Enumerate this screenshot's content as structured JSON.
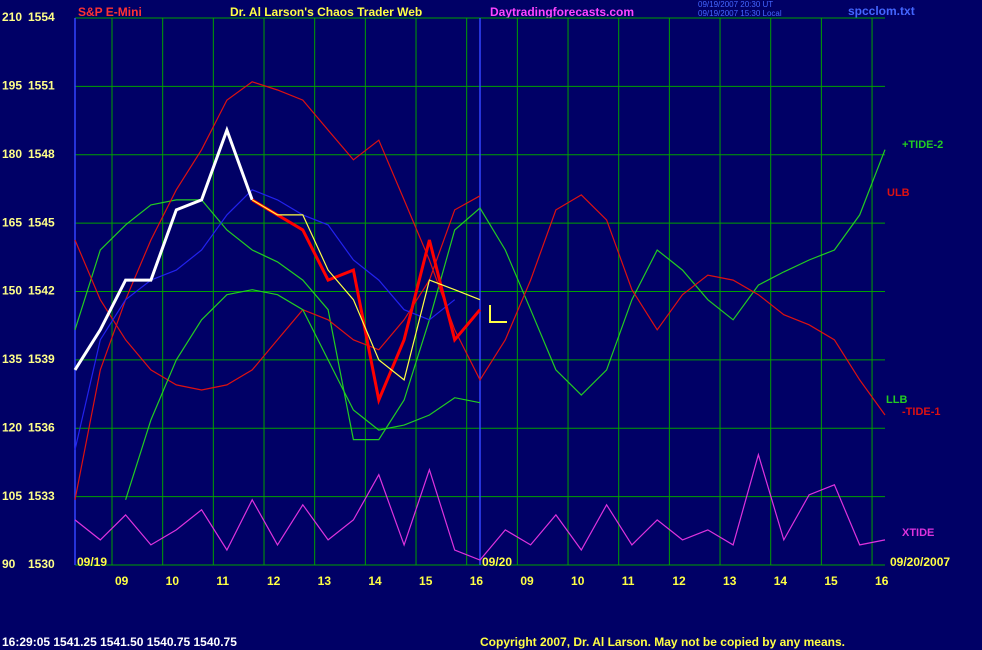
{
  "chart_data": {
    "type": "line",
    "symbol": "S&P E-Mini",
    "title": "Dr. Al Larson's Chaos Trader Web",
    "site": "Daytradingforecasts.com",
    "stamp": [
      "09/19/2007 20:30 UT",
      "09/19/2007 15:30 Local"
    ],
    "file": "spcclom.txt",
    "status": "16:29:05  1541.25 1541.50 1540.75 1540.75",
    "copyright": "Copyright 2007, Dr. Al Larson. May not be copied by any means.",
    "hour_labels": [
      "09",
      "10",
      "11",
      "12",
      "13",
      "14",
      "15",
      "16",
      "09",
      "10",
      "11",
      "12",
      "13",
      "14",
      "15",
      "16"
    ],
    "day_labels": [
      "09/19",
      "09/20",
      "09/20/2007"
    ],
    "ylim": [
      90,
      210
    ],
    "yticks": [
      90,
      105,
      120,
      135,
      150,
      165,
      180,
      195,
      210
    ],
    "y2lim": [
      1530,
      1554
    ],
    "y2ticks": [
      1530,
      1533,
      1536,
      1539,
      1542,
      1545,
      1548,
      1551,
      1554
    ],
    "grid": true,
    "series": [
      {
        "name": "+TIDE-2",
        "color": "#22cc22",
        "values": [
          141.6,
          159.1,
          164.6,
          169,
          170.1,
          170.1,
          163.5,
          159.1,
          156.5,
          152.5,
          146,
          117.5,
          117.5,
          126.2,
          143.8,
          163.5,
          168.3,
          159.1,
          146,
          132.8,
          127.3,
          132.8,
          148.2,
          159.1,
          154.7,
          148.2,
          143.8,
          151.4,
          154.3,
          156.9,
          159.1,
          166.8,
          181.1
        ]
      },
      {
        "name": "ULB",
        "color": "#dd1111",
        "values": [
          161.3,
          148.2,
          139.4,
          132.8,
          129.5,
          128.4,
          129.5,
          132.8,
          139.4,
          146,
          143.8,
          139.4,
          137.2,
          143.8,
          152.5,
          167.9,
          171,
          null,
          null,
          null,
          null,
          null,
          null,
          null,
          null,
          null,
          null,
          null,
          null,
          null,
          null,
          null,
          null
        ]
      },
      {
        "name": "LLB",
        "color": "#22cc22",
        "values": [
          null,
          null,
          104.3,
          121.8,
          135,
          143.8,
          149.3,
          150.4,
          149.3,
          146,
          135,
          124,
          119.6,
          120.7,
          122.9,
          126.7,
          125.6,
          null,
          null,
          null,
          null,
          null,
          null,
          null,
          null,
          null,
          null,
          null,
          null,
          null,
          null,
          null,
          null
        ]
      },
      {
        "name": "-TIDE-1",
        "color": "#dd1111",
        "values": [
          104.3,
          132.8,
          148.2,
          161.3,
          172.3,
          181.1,
          192,
          196,
          194.2,
          192,
          185.4,
          178.9,
          183.2,
          170.1,
          156.9,
          141.6,
          130.6,
          139.4,
          152.5,
          167.9,
          171.2,
          165.7,
          150.4,
          141.6,
          149.3,
          153.6,
          152.5,
          149.3,
          144.9,
          142.7,
          139.4,
          130.6,
          122.9
        ]
      },
      {
        "name": "XTIDE",
        "color": "#dd33dd",
        "values": [
          99.9,
          95.5,
          101,
          94.4,
          97.7,
          102.1,
          93.3,
          104.3,
          94.4,
          103.2,
          95.5,
          99.9,
          109.8,
          94.4,
          110.9,
          93.3,
          91.1,
          97.7,
          94.4,
          101,
          93.3,
          103.2,
          94.4,
          99.9,
          95.5,
          97.7,
          94.4,
          114.2,
          95.5,
          105.4,
          107.6,
          94.4,
          95.5
        ]
      },
      {
        "color": "#2222ee",
        "values": [
          115.3,
          139.4,
          148.2,
          152.5,
          154.7,
          159.1,
          166.8,
          172.3,
          170.1,
          166.8,
          164.6,
          156.9,
          152.5,
          146,
          143.8,
          148.2,
          null,
          null,
          null,
          null,
          null,
          null,
          null,
          null,
          null,
          null,
          null,
          null,
          null,
          null,
          null,
          null,
          null
        ]
      },
      {
        "color": "#ffffff",
        "values": [
          132.8,
          141.6,
          152.5,
          152.5,
          167.9,
          170.1,
          185.4,
          170.1,
          null,
          null,
          null,
          null,
          null,
          null,
          null,
          null,
          null,
          null,
          null,
          null,
          null,
          null,
          null,
          null,
          null,
          null,
          null,
          null,
          null,
          null,
          null,
          null,
          null
        ]
      },
      {
        "color": "#ff0000",
        "values": [
          null,
          null,
          null,
          null,
          null,
          null,
          null,
          170.1,
          166.8,
          163.5,
          152.5,
          154.7,
          126.2,
          139.4,
          161.3,
          139.4,
          146,
          null,
          null,
          null,
          null,
          null,
          null,
          null,
          null,
          null,
          null,
          null,
          null,
          null,
          null,
          null,
          null
        ]
      },
      {
        "color": "#ffff44",
        "values": [
          null,
          null,
          null,
          null,
          null,
          null,
          null,
          170.1,
          166.8,
          166.8,
          154.7,
          148.2,
          135,
          130.6,
          152.5,
          150.4,
          148.2,
          null,
          null,
          null,
          null,
          null,
          null,
          null,
          null,
          null,
          null,
          null,
          null,
          null,
          null,
          null,
          null
        ]
      }
    ]
  }
}
